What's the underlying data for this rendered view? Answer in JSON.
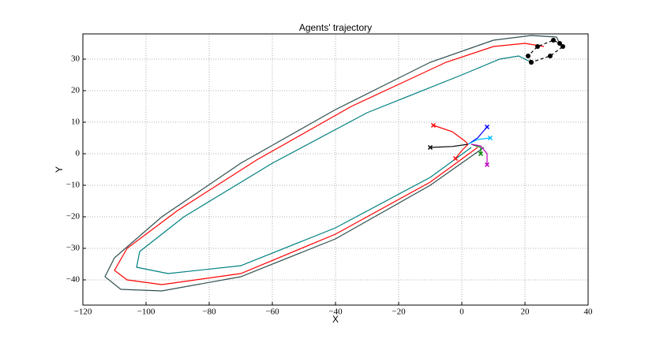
{
  "chart_data": {
    "type": "line",
    "title": "Agents' trajectory",
    "xlabel": "X",
    "ylabel": "Y",
    "xlim": [
      -120,
      40
    ],
    "ylim": [
      -48,
      38
    ],
    "grid": true,
    "xticks": [
      {
        "value": -120,
        "label": "−120"
      },
      {
        "value": -100,
        "label": "−100"
      },
      {
        "value": -80,
        "label": "−80"
      },
      {
        "value": -60,
        "label": "−60"
      },
      {
        "value": -40,
        "label": "−40"
      },
      {
        "value": -20,
        "label": "−20"
      },
      0,
      20,
      40
    ],
    "yticks": [
      {
        "value": -40,
        "label": "−40"
      },
      {
        "value": -30,
        "label": "−30"
      },
      {
        "value": -20,
        "label": "−20"
      },
      {
        "value": -10,
        "label": "−10"
      },
      0,
      10,
      20,
      30
    ],
    "series": [
      {
        "color": "#2f4f4f",
        "x": [
          7,
          -10,
          -40,
          -70,
          -95,
          -108,
          -113,
          -110,
          -95,
          -70,
          -40,
          -10,
          10,
          22,
          30,
          31
        ],
        "y": [
          2,
          -10,
          -27,
          -39,
          -43.5,
          -43,
          -39,
          -33,
          -20,
          -3,
          14,
          29,
          36,
          37.5,
          37,
          35
        ]
      },
      {
        "color": "#ff0000",
        "x": [
          5,
          -10,
          -40,
          -70,
          -95,
          -106,
          -110,
          -106,
          -90,
          -65,
          -35,
          -5,
          10,
          20,
          26
        ],
        "y": [
          2,
          -9,
          -25.5,
          -38,
          -41.5,
          -40,
          -37,
          -30,
          -18,
          -2,
          15,
          29,
          34,
          35,
          34
        ]
      },
      {
        "color": "#008080",
        "x": [
          3,
          -10,
          -40,
          -70,
          -93,
          -103,
          -102,
          -88,
          -60,
          -30,
          0,
          12,
          18,
          22
        ],
        "y": [
          2,
          -7.5,
          -23.5,
          -35.5,
          -38,
          -36,
          -31,
          -20,
          -3,
          13,
          25,
          30,
          31,
          29
        ]
      },
      {
        "color": "#ff0000",
        "marker": "x",
        "x": [
          -9,
          -3,
          1,
          2
        ],
        "y": [
          9,
          7,
          4,
          3
        ]
      },
      {
        "color": "#000000",
        "marker": "x",
        "x": [
          -10,
          -3,
          2
        ],
        "y": [
          2,
          2.3,
          3
        ]
      },
      {
        "color": "#ff0000",
        "marker": "x",
        "x": [
          -2,
          0,
          2
        ],
        "y": [
          -1.5,
          1,
          3
        ]
      },
      {
        "color": "#0000ff",
        "marker": "x",
        "x": [
          8,
          5,
          2
        ],
        "y": [
          8.5,
          5,
          3
        ]
      },
      {
        "color": "#00bfff",
        "marker": "x",
        "x": [
          9,
          5,
          2
        ],
        "y": [
          5,
          4.5,
          3
        ]
      },
      {
        "color": "#008000",
        "marker": "x",
        "x": [
          6,
          6,
          3
        ],
        "y": [
          0,
          2,
          3
        ]
      },
      {
        "color": "#bf00bf",
        "marker": "x",
        "x": [
          8,
          8,
          6,
          3
        ],
        "y": [
          -3.5,
          0,
          2.5,
          3
        ]
      },
      {
        "color": "#000000",
        "marker": "o",
        "dash": true,
        "x": [
          22,
          21,
          24,
          29,
          31,
          32,
          28,
          22
        ],
        "y": [
          29,
          31,
          34,
          36,
          35,
          34,
          31,
          29
        ]
      }
    ]
  }
}
